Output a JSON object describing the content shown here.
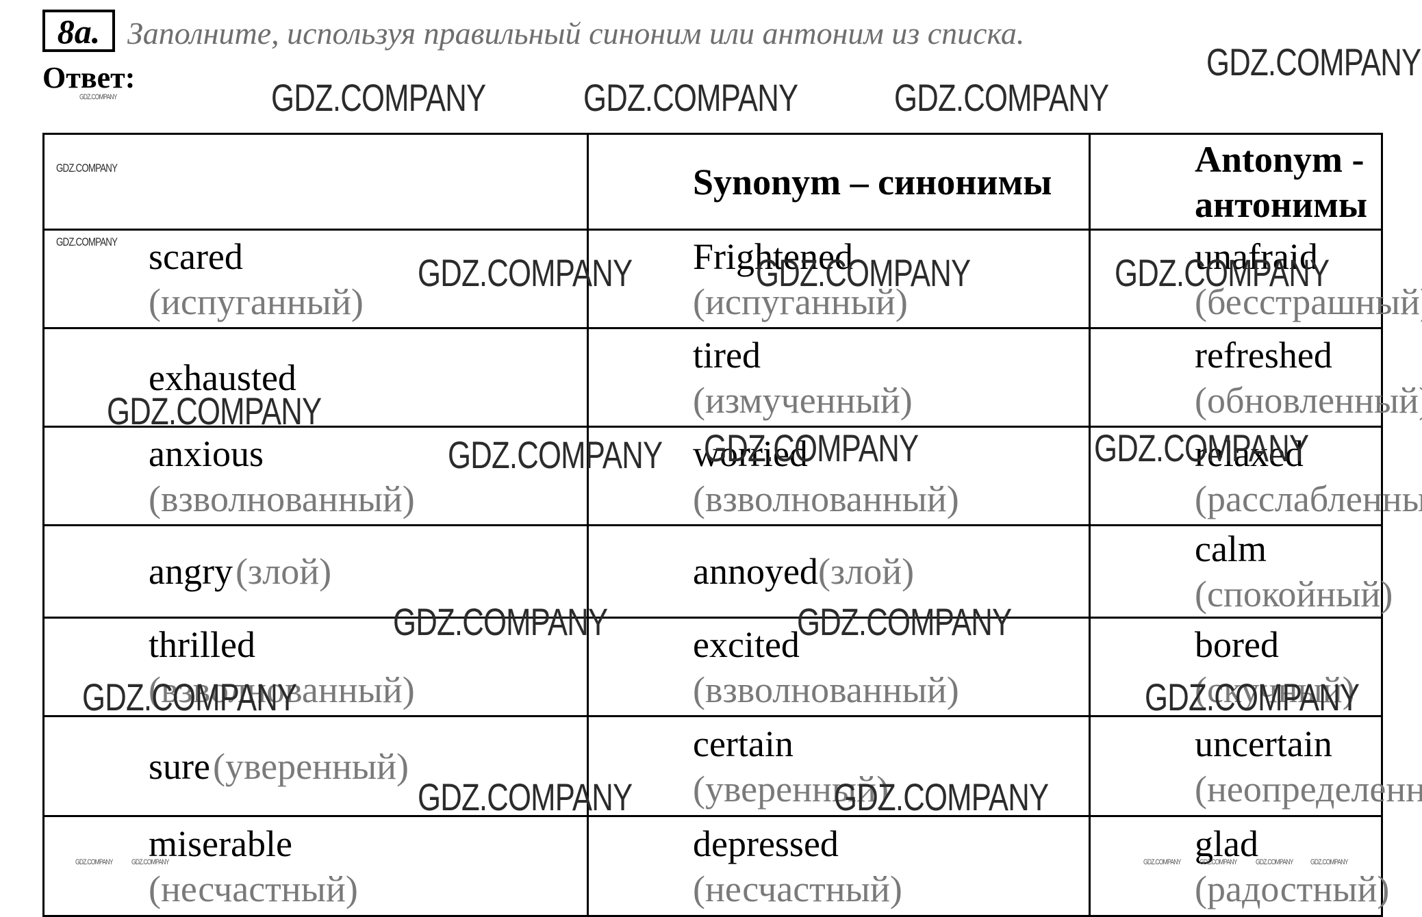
{
  "task": {
    "number": "8a.",
    "instruction": "Заполните, используя правильный синоним или антоним из списка.",
    "answer_label": "Ответ:"
  },
  "watermark": "GDZ.COMPANY",
  "table": {
    "headers": [
      "",
      "Synonym – синонимы",
      "Antonym - антонимы"
    ],
    "rows": [
      {
        "word": "scared",
        "word_tr": "(испуганный)",
        "syn": "Frightened",
        "syn_tr": "(испуганный)",
        "ant": "unafraid",
        "ant_tr": "(бесстрашный)"
      },
      {
        "word": "exhausted",
        "word_tr": "",
        "syn": "tired",
        "syn_tr": "(измученный)",
        "ant": "refreshed",
        "ant_tr": "(обновленный)"
      },
      {
        "word": "anxious",
        "word_tr": "(взволнованный)",
        "syn": "worried",
        "syn_tr": "(взволнованный)",
        "ant": "relaxed",
        "ant_tr": "(расслабленный)"
      },
      {
        "word": "angry",
        "word_tr": "(злой)",
        "syn": "annoyed",
        "syn_tr": "(злой)",
        "ant": "calm",
        "ant_tr": "(спокойный)"
      },
      {
        "word": "thrilled",
        "word_tr": "(взволнованный)",
        "syn": "excited",
        "syn_tr": "(взволнованный)",
        "ant": "bored",
        "ant_tr": "(скучный)"
      },
      {
        "word": "sure",
        "word_tr": "(уверенный)",
        "syn": "certain",
        "syn_tr": "(уверенный)",
        "ant": "uncertain",
        "ant_tr": "(неопределенный)"
      },
      {
        "word": "miserable",
        "word_tr": "(несчастный)",
        "syn": "depressed",
        "syn_tr": "(несчастный)",
        "ant": "glad",
        "ant_tr": "(радостный)"
      }
    ]
  }
}
